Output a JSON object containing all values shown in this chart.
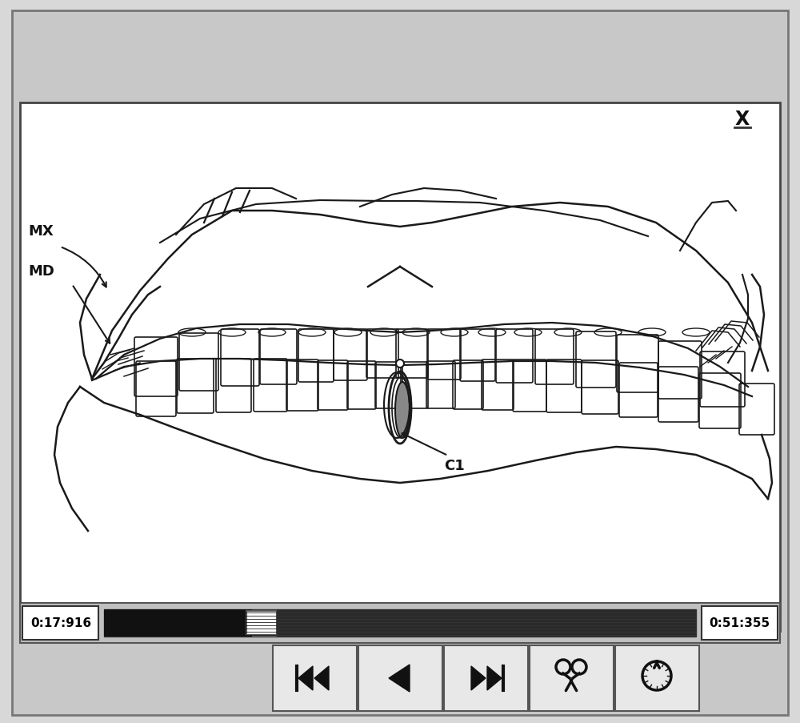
{
  "bg_color": "#d8d8d8",
  "outer_bg": "#c8c8c8",
  "frame_bg": "#ffffff",
  "video_bg": "#ffffff",
  "title_x_text": "X",
  "time_start": "0:17:916",
  "time_end": "0:51:355",
  "label_MX": "MX",
  "label_MD": "MD",
  "label_C1": "C1",
  "border_color": "#555555",
  "text_color": "#111111",
  "line_color": "#1a1a1a",
  "btn_bg": "#e8e8e8",
  "timeline_dark": "#222222",
  "timeline_mid": "#888888",
  "timeline_light": "#cccccc"
}
